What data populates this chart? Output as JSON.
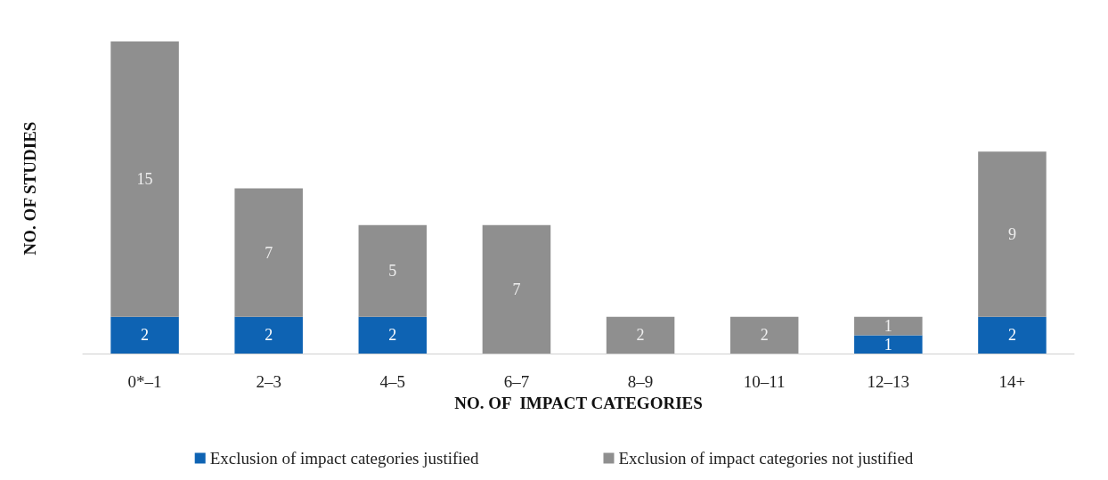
{
  "chart_data": {
    "type": "bar",
    "stacked": true,
    "data_labels": true,
    "legend": "bottom",
    "grid": false,
    "xlabel": "NO. OF  IMPACT CATEGORIES",
    "ylabel": "NO. OF STUDIES",
    "categories": [
      "0*–1",
      "2–3",
      "4–5",
      "6–7",
      "8–9",
      "10–11",
      "12–13",
      "14+"
    ],
    "series": [
      {
        "name": "Exclusion of impact categories justified",
        "color": "#0e63b3",
        "values": [
          2,
          2,
          2,
          null,
          null,
          null,
          1,
          2
        ]
      },
      {
        "name": "Exclusion of impact categories not justified",
        "color": "#8f8f8f",
        "values": [
          15,
          7,
          5,
          7,
          2,
          2,
          1,
          9
        ]
      }
    ]
  }
}
